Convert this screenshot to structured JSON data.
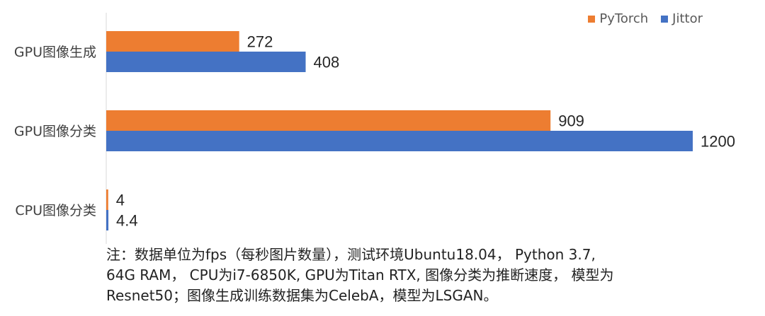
{
  "chart_data": {
    "type": "bar",
    "orientation": "horizontal",
    "categories": [
      "GPU图像生成",
      "GPU图像分类",
      "CPU图像分类"
    ],
    "series": [
      {
        "name": "PyTorch",
        "color": "#ED7D31",
        "values": [
          272,
          909,
          4
        ]
      },
      {
        "name": "Jittor",
        "color": "#4472C4",
        "values": [
          408,
          1200,
          4.4
        ]
      }
    ],
    "data_labels": [
      [
        "272",
        "909",
        "4"
      ],
      [
        "408",
        "1200",
        "4.4"
      ]
    ],
    "xlim": [
      0,
      1200
    ],
    "title": "",
    "xlabel": "",
    "ylabel": "",
    "grid": false,
    "legend_position": "top-right"
  },
  "legend": {
    "items": [
      {
        "label": "PyTorch",
        "color": "#ED7D31"
      },
      {
        "label": "Jittor",
        "color": "#4472C4"
      }
    ]
  },
  "note": {
    "lines": [
      "注：数据单位为fps（每秒图片数量），测试环境Ubuntu18.04， Python 3.7,",
      "64G RAM， CPU为i7-6850K, GPU为Titan RTX, 图像分类为推断速度， 模型为",
      "Resnet50；图像生成训练数据集为CelebA，模型为LSGAN。"
    ]
  }
}
